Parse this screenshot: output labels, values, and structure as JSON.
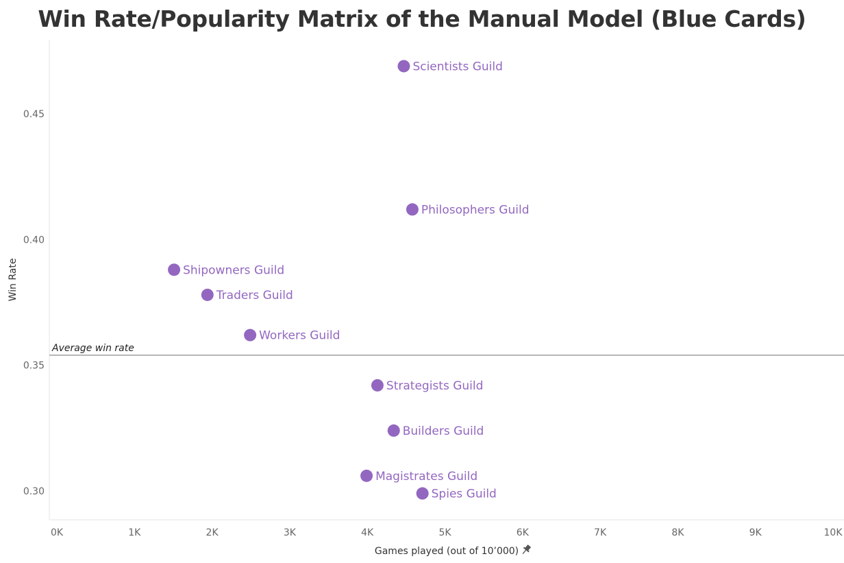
{
  "chart_data": {
    "type": "scatter",
    "title": "Win Rate/Popularity Matrix of the Manual Model (Blue Cards)",
    "xlabel": "Games played (out of 10’000)",
    "ylabel": "Win Rate",
    "xlim": [
      0,
      10000
    ],
    "ylim": [
      0.2885,
      0.4795
    ],
    "x_ticks": [
      0,
      1000,
      2000,
      3000,
      4000,
      5000,
      6000,
      7000,
      8000,
      9000,
      10000
    ],
    "x_tick_labels": [
      "0K",
      "1K",
      "2K",
      "3K",
      "4K",
      "5K",
      "6K",
      "7K",
      "8K",
      "9K",
      "10K"
    ],
    "y_ticks": [
      0.3,
      0.35,
      0.4,
      0.45
    ],
    "y_tick_labels": [
      "0.30",
      "0.35",
      "0.40",
      "0.45"
    ],
    "point_color": "#9367c0",
    "grid": false,
    "reference_line": {
      "label": "Average win rate",
      "value": 0.354,
      "color": "#a6a6a6"
    },
    "points": [
      {
        "label": "Scientists Guild",
        "x": 4470,
        "y": 0.469
      },
      {
        "label": "Philosophers Guild",
        "x": 4580,
        "y": 0.412
      },
      {
        "label": "Shipowners Guild",
        "x": 1510,
        "y": 0.388
      },
      {
        "label": "Traders Guild",
        "x": 1940,
        "y": 0.378
      },
      {
        "label": "Workers Guild",
        "x": 2490,
        "y": 0.362
      },
      {
        "label": "Strategists Guild",
        "x": 4130,
        "y": 0.342
      },
      {
        "label": "Builders Guild",
        "x": 4340,
        "y": 0.324
      },
      {
        "label": "Magistrates Guild",
        "x": 3990,
        "y": 0.306
      },
      {
        "label": "Spies Guild",
        "x": 4710,
        "y": 0.299
      }
    ]
  }
}
